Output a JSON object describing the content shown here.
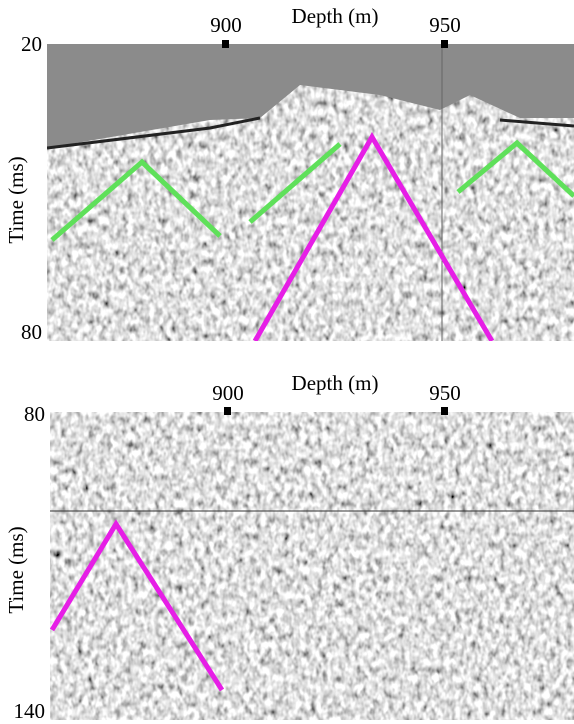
{
  "panels": [
    {
      "x_label": "Depth (m)",
      "y_label": "Time (ms)",
      "x_ticks": [
        900,
        950
      ],
      "y_ticks": [
        20,
        80
      ]
    },
    {
      "x_label": "Depth (m)",
      "y_label": "Time (ms)",
      "x_ticks": [
        900,
        950
      ],
      "y_ticks": [
        80,
        140
      ]
    }
  ]
}
